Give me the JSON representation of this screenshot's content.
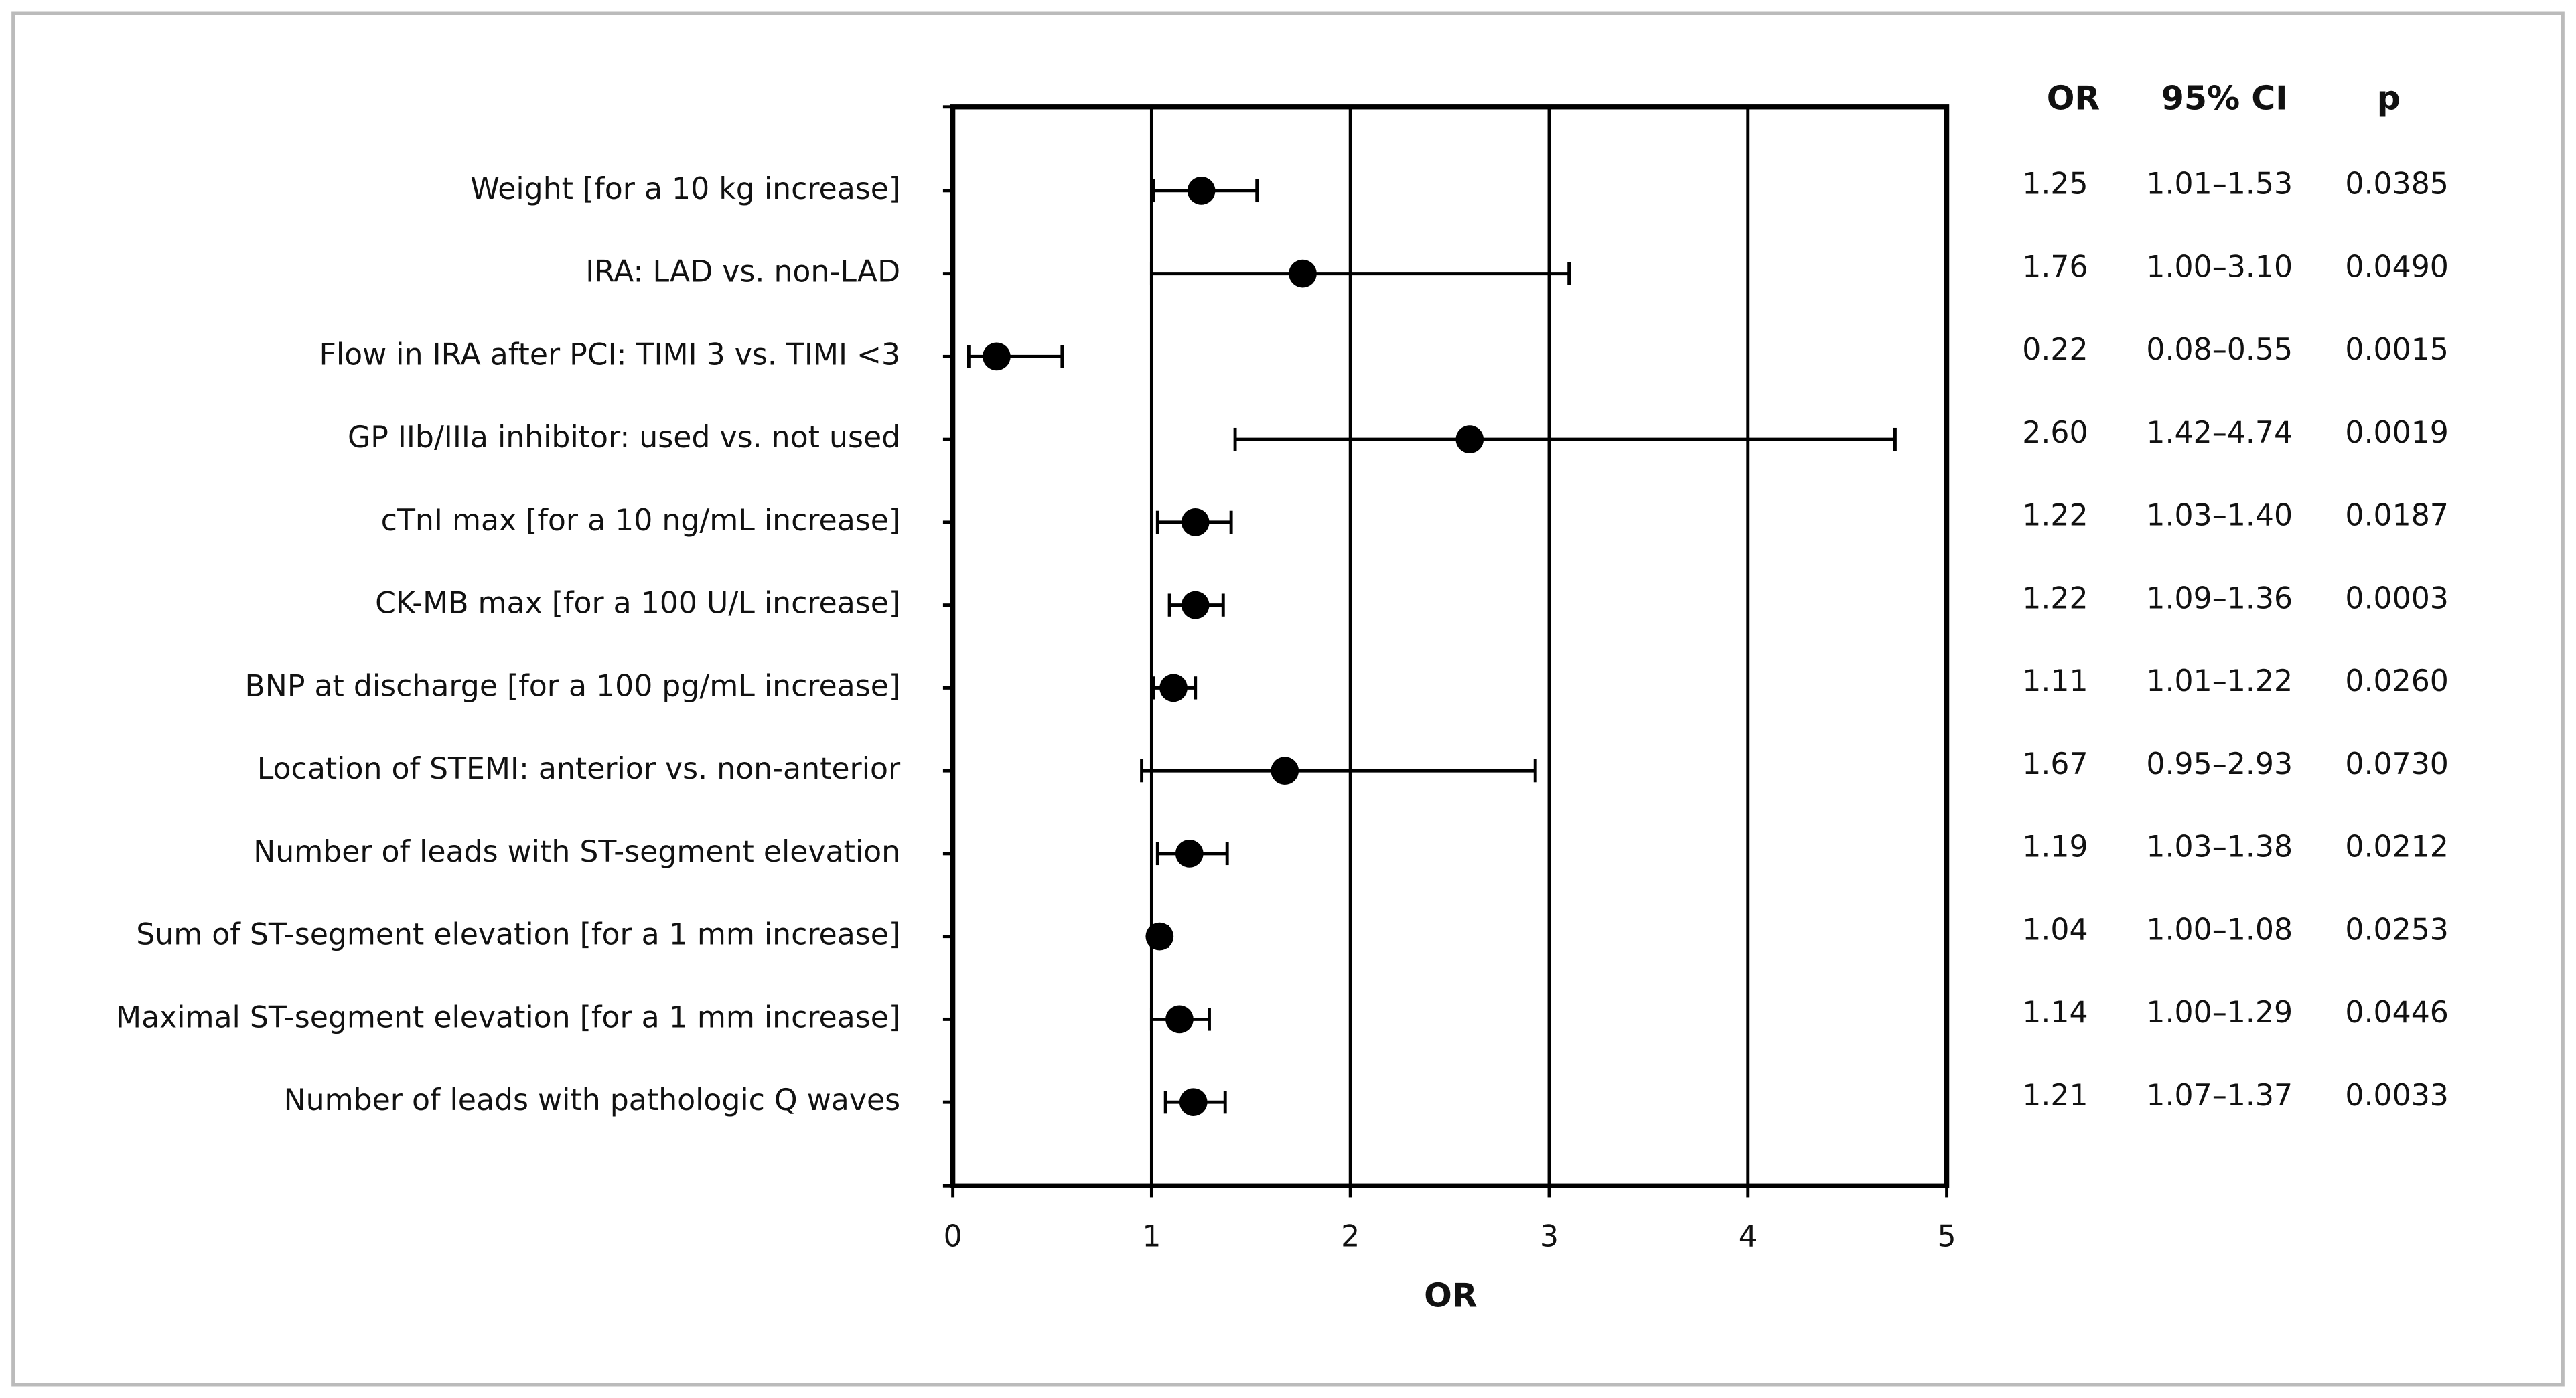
{
  "chart_data": {
    "type": "forest",
    "categories": [
      "Weight [for a 10 kg increase]",
      "IRA: LAD vs. non-LAD",
      "Flow in IRA after PCI: TIMI 3 vs. TIMI <3",
      "GP IIb/IIIa inhibitor: used vs. not used",
      "cTnI max [for a 10 ng/mL increase]",
      "CK-MB max [for a 100 U/L increase]",
      "BNP at discharge [for a 100 pg/mL increase]",
      "Location of STEMI: anterior vs. non-anterior",
      "Number of leads with ST-segment elevation",
      "Sum of ST-segment elevation [for a 1 mm increase]",
      "Maximal ST-segment elevation [for a 1 mm increase]",
      "Number of leads with pathologic Q waves"
    ],
    "values": [
      1.25,
      1.76,
      0.22,
      2.6,
      1.22,
      1.22,
      1.11,
      1.67,
      1.19,
      1.04,
      1.14,
      1.21
    ],
    "value_labels": [
      "1.25",
      "1.76",
      "0.22",
      "2.60",
      "1.22",
      "1.22",
      "1.11",
      "1.67",
      "1.19",
      "1.04",
      "1.14",
      "1.21"
    ],
    "lower": [
      1.01,
      1.0,
      0.08,
      1.42,
      1.03,
      1.09,
      1.01,
      0.95,
      1.03,
      1.0,
      1.0,
      1.07
    ],
    "upper": [
      1.53,
      3.1,
      0.55,
      4.74,
      1.4,
      1.36,
      1.22,
      2.93,
      1.38,
      1.08,
      1.29,
      1.37
    ],
    "ci_labels": [
      "1.01–1.53",
      "1.00–3.10",
      "0.08–0.55",
      "1.42–4.74",
      "1.03–1.40",
      "1.09–1.36",
      "1.01–1.22",
      "0.95–2.93",
      "1.03–1.38",
      "1.00–1.08",
      "1.00–1.29",
      "1.07–1.37"
    ],
    "p_values": [
      "0.0385",
      "0.0490",
      "0.0015",
      "0.0019",
      "0.0187",
      "0.0003",
      "0.0260",
      "0.0730",
      "0.0212",
      "0.0253",
      "0.0446",
      "0.0033"
    ],
    "column_headers": [
      "OR",
      "95% CI",
      "p"
    ],
    "x_label": "OR",
    "xlim": [
      0,
      5
    ],
    "xticks": [
      0,
      1,
      2,
      3,
      4,
      5
    ],
    "grid": true,
    "color": "#000000"
  }
}
